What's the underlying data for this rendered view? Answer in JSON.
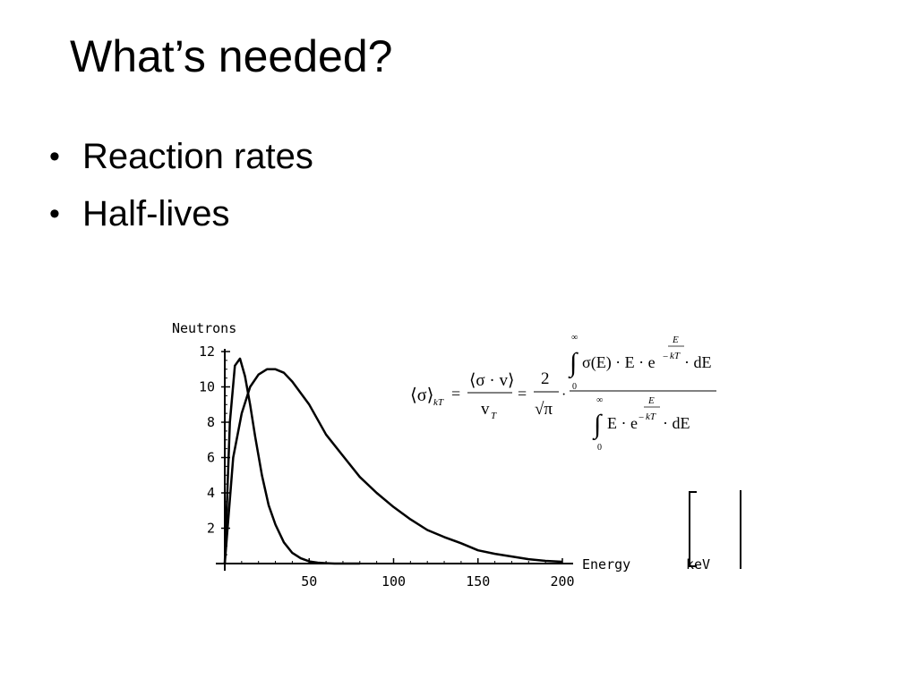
{
  "slide": {
    "title": "What’s needed?",
    "bullets": [
      "Reaction rates",
      "Half-lives"
    ]
  },
  "chart_data": {
    "type": "line",
    "ylabel": "Neutrons",
    "xlabel": "Energy",
    "xunit": "keV",
    "xlim": [
      0,
      200
    ],
    "ylim": [
      0,
      12
    ],
    "x_ticks": [
      50,
      100,
      150,
      200
    ],
    "y_ticks": [
      2,
      4,
      6,
      8,
      10,
      12
    ],
    "series": [
      {
        "x": [
          0,
          3,
          6,
          9,
          12,
          15,
          18,
          22,
          26,
          30,
          35,
          40,
          45,
          50,
          55,
          60,
          65,
          70,
          80
        ],
        "values": [
          0,
          8.0,
          11.2,
          11.6,
          10.6,
          9.0,
          7.2,
          5.0,
          3.3,
          2.2,
          1.2,
          0.6,
          0.3,
          0.12,
          0.05,
          0.02,
          0.0,
          0.0,
          0.0
        ]
      },
      {
        "x": [
          0,
          5,
          10,
          15,
          20,
          25,
          30,
          35,
          40,
          50,
          60,
          70,
          80,
          90,
          100,
          110,
          120,
          130,
          140,
          150,
          160,
          170,
          180,
          190,
          200
        ],
        "values": [
          0,
          6.0,
          8.5,
          10.0,
          10.7,
          11.0,
          11.0,
          10.8,
          10.3,
          9.0,
          7.3,
          6.1,
          4.9,
          4.0,
          3.2,
          2.5,
          1.9,
          1.5,
          1.15,
          0.75,
          0.55,
          0.4,
          0.25,
          0.15,
          0.1
        ]
      }
    ],
    "formula": {
      "lhs_bracket": "⟨σ⟩",
      "lhs_subscript": "kT",
      "eq": "=",
      "mid_numerator": "⟨σ · v⟩",
      "mid_denominator": "v",
      "mid_denominator_sub": "T",
      "coef_numerator": "2",
      "coef_denominator": "√π",
      "dot": "·",
      "integral_upper": "∞",
      "integral_lower": "0",
      "integral_sign": "∫",
      "numerator_integrand": "σ(E) · E · e",
      "exp_numerator": "E",
      "exp_denominator": "kT",
      "exp_minus": "−",
      "denominator_integrand": "E · e",
      "differential": "· dE"
    }
  }
}
